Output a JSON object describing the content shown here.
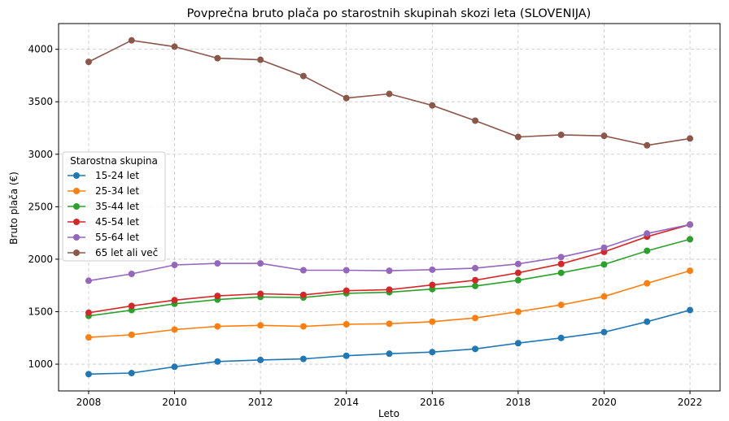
{
  "chart_data": {
    "type": "line",
    "title": "Povprečna bruto plača po starostnih skupinah skozi leta (SLOVENIJA)",
    "xlabel": "Leto",
    "ylabel": "Bruto plača (€)",
    "x": [
      2008,
      2009,
      2010,
      2011,
      2012,
      2013,
      2014,
      2015,
      2016,
      2017,
      2018,
      2019,
      2020,
      2021,
      2022
    ],
    "xlim": [
      2007.3,
      2022.7
    ],
    "ylim": [
      745,
      4245
    ],
    "xticks": [
      2008,
      2010,
      2012,
      2014,
      2016,
      2018,
      2020,
      2022
    ],
    "yticks": [
      1000,
      1500,
      2000,
      2500,
      3000,
      3500,
      4000
    ],
    "grid": true,
    "legend": {
      "title": "Starostna skupina",
      "placement": "center-left"
    },
    "series": [
      {
        "name": "15-24 let",
        "color": "#1f77b4",
        "values": [
          905,
          915,
          975,
          1025,
          1040,
          1050,
          1080,
          1100,
          1115,
          1145,
          1200,
          1250,
          1305,
          1405,
          1515
        ]
      },
      {
        "name": "25-34 let",
        "color": "#ff7f0e",
        "values": [
          1255,
          1280,
          1330,
          1360,
          1370,
          1360,
          1380,
          1385,
          1405,
          1440,
          1500,
          1565,
          1645,
          1770,
          1890
        ]
      },
      {
        "name": "35-44 let",
        "color": "#2ca02c",
        "values": [
          1460,
          1515,
          1575,
          1615,
          1640,
          1635,
          1675,
          1685,
          1715,
          1745,
          1800,
          1870,
          1950,
          2080,
          2190
        ]
      },
      {
        "name": "45-54 let",
        "color": "#d62728",
        "values": [
          1490,
          1555,
          1610,
          1650,
          1670,
          1660,
          1700,
          1710,
          1755,
          1800,
          1870,
          1955,
          2070,
          2215,
          2330
        ]
      },
      {
        "name": "55-64 let",
        "color": "#9467bd",
        "values": [
          1795,
          1860,
          1945,
          1960,
          1960,
          1895,
          1895,
          1890,
          1900,
          1915,
          1955,
          2020,
          2110,
          2245,
          2330
        ]
      },
      {
        "name": "65 let ali več",
        "color": "#8c564b",
        "values": [
          3880,
          4085,
          4025,
          3915,
          3900,
          3745,
          3535,
          3575,
          3465,
          3320,
          3165,
          3185,
          3175,
          3085,
          3150
        ]
      }
    ]
  }
}
